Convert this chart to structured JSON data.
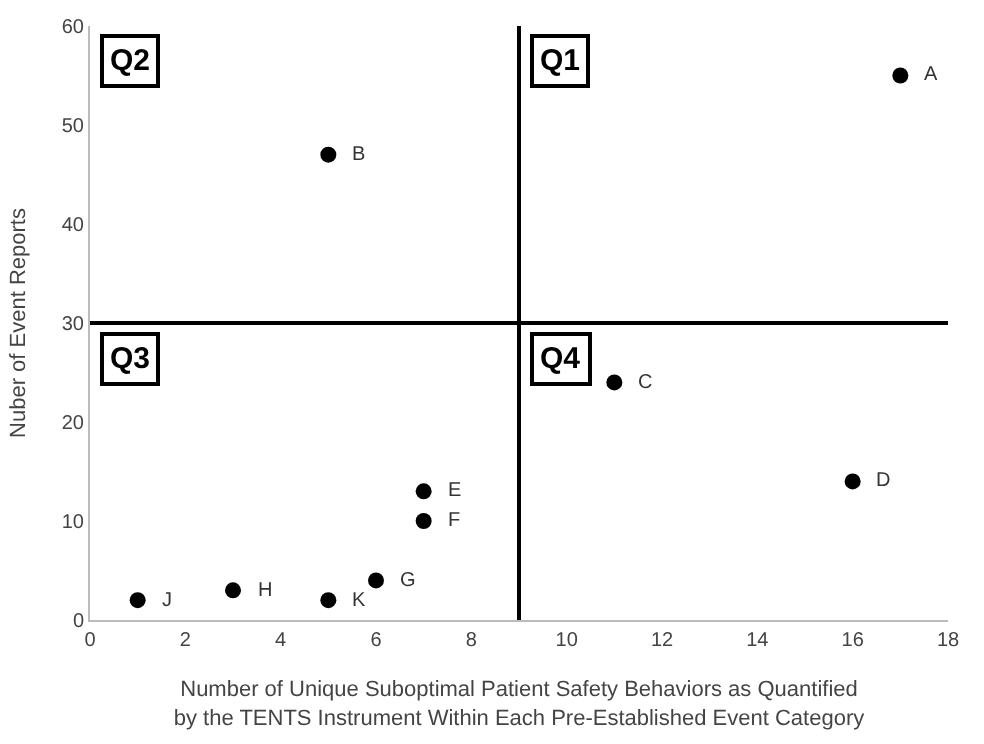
{
  "chart_data": {
    "type": "scatter",
    "xlabel": "Number of Unique Suboptimal Patient Safety Behaviors as Quantified\nby the TENTS Instrument Within Each Pre-Established Event Category",
    "ylabel": "Nuber of Event Reports",
    "x": [
      17,
      5,
      11,
      16,
      7,
      7,
      6,
      3,
      1,
      5
    ],
    "series": [
      {
        "color": "#000000",
        "values": [
          55,
          47,
          24,
          14,
          13,
          10,
          4,
          3,
          2,
          2
        ]
      }
    ],
    "marker": "circle",
    "xlim": [
      0,
      18
    ],
    "xticks": [
      0,
      2,
      4,
      6,
      8,
      10,
      12,
      14,
      16,
      18
    ],
    "ylim": [
      0,
      60
    ],
    "yticks": [
      0,
      10,
      20,
      30,
      40,
      50,
      60
    ],
    "ref_lines": [
      {
        "axis": "x",
        "value": 9,
        "color": "#000000"
      },
      {
        "axis": "y",
        "value": 30,
        "color": "#000000"
      }
    ],
    "annotations": [
      "Q2",
      "Q1",
      "Q3",
      "Q4",
      {
        "text": "A",
        "x": 17,
        "y": 55
      },
      {
        "text": "B",
        "x": 5,
        "y": 47
      },
      {
        "text": "C",
        "x": 11,
        "y": 24
      },
      {
        "text": "D",
        "x": 16,
        "y": 14
      },
      {
        "text": "E",
        "x": 7,
        "y": 13
      },
      {
        "text": "F",
        "x": 7,
        "y": 10
      },
      {
        "text": "G",
        "x": 6,
        "y": 4
      },
      {
        "text": "H",
        "x": 3,
        "y": 3
      },
      {
        "text": "J",
        "x": 1,
        "y": 2
      },
      {
        "text": "K",
        "x": 5,
        "y": 2
      }
    ]
  }
}
